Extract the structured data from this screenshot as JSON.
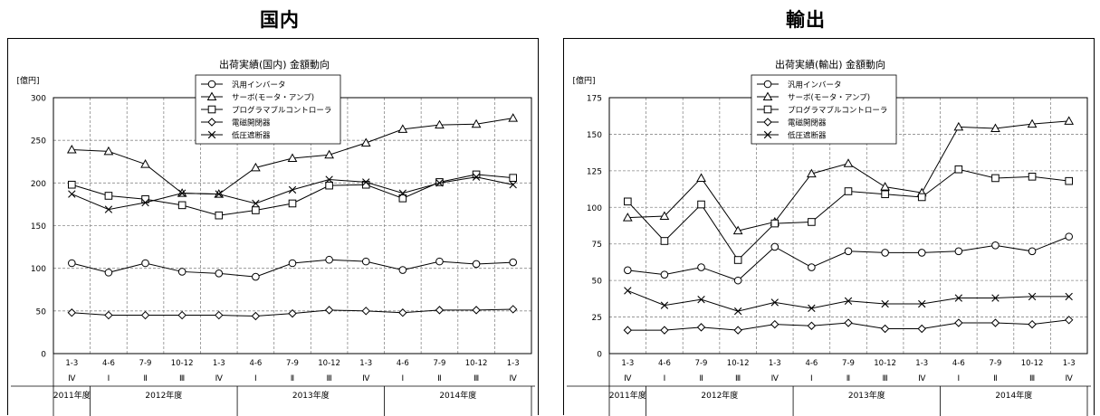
{
  "panels": {
    "left": {
      "heading": "国内"
    },
    "right": {
      "heading": "輸出"
    }
  },
  "chart_data": [
    {
      "type": "line",
      "title": "出荷実績(国内) 金額動向",
      "ylabel": "[億円]",
      "ylim": [
        0,
        300
      ],
      "yticks": [
        0,
        50,
        100,
        150,
        200,
        250,
        300
      ],
      "grid": true,
      "legend_position": "top-center",
      "categories": [
        "1-3",
        "4-6",
        "7-9",
        "10-12",
        "1-3",
        "4-6",
        "7-9",
        "10-12",
        "1-3",
        "4-6",
        "7-9",
        "10-12",
        "1-3"
      ],
      "quarters": [
        "Ⅳ",
        "Ⅰ",
        "Ⅱ",
        "Ⅲ",
        "Ⅳ",
        "Ⅰ",
        "Ⅱ",
        "Ⅲ",
        "Ⅳ",
        "Ⅰ",
        "Ⅱ",
        "Ⅲ",
        "Ⅳ"
      ],
      "fiscal_years": [
        {
          "label": "2011年度",
          "span": 1
        },
        {
          "label": "2012年度",
          "span": 4
        },
        {
          "label": "2013年度",
          "span": 4
        },
        {
          "label": "2014年度",
          "span": 4
        }
      ],
      "series": [
        {
          "name": "汎用インバータ",
          "marker": "circle",
          "values": [
            106,
            95,
            106,
            96,
            94,
            90,
            106,
            110,
            108,
            98,
            108,
            105,
            107
          ]
        },
        {
          "name": "サーボ(モータ・アンプ)",
          "marker": "triangle",
          "values": [
            239,
            237,
            222,
            188,
            187,
            218,
            229,
            233,
            247,
            263,
            268,
            269,
            276
          ]
        },
        {
          "name": "プログラマブルコントローラ",
          "marker": "square",
          "values": [
            198,
            185,
            181,
            174,
            162,
            168,
            176,
            197,
            198,
            182,
            201,
            210,
            206
          ]
        },
        {
          "name": "電磁開閉器",
          "marker": "diamond",
          "values": [
            48,
            45,
            45,
            45,
            45,
            44,
            47,
            51,
            50,
            48,
            51,
            51,
            52
          ]
        },
        {
          "name": "低圧遮断器",
          "marker": "x",
          "values": [
            187,
            169,
            177,
            188,
            187,
            176,
            192,
            204,
            201,
            188,
            200,
            207,
            198
          ]
        }
      ]
    },
    {
      "type": "line",
      "title": "出荷実績(輸出) 金額動向",
      "ylabel": "[億円]",
      "ylim": [
        0,
        175
      ],
      "yticks": [
        0,
        25,
        50,
        75,
        100,
        125,
        150,
        175
      ],
      "grid": true,
      "legend_position": "top-center",
      "categories": [
        "1-3",
        "4-6",
        "7-9",
        "10-12",
        "1-3",
        "4-6",
        "7-9",
        "10-12",
        "1-3",
        "4-6",
        "7-9",
        "10-12",
        "1-3"
      ],
      "quarters": [
        "Ⅳ",
        "Ⅰ",
        "Ⅱ",
        "Ⅲ",
        "Ⅳ",
        "Ⅰ",
        "Ⅱ",
        "Ⅲ",
        "Ⅳ",
        "Ⅰ",
        "Ⅱ",
        "Ⅲ",
        "Ⅳ"
      ],
      "fiscal_years": [
        {
          "label": "2011年度",
          "span": 1
        },
        {
          "label": "2012年度",
          "span": 4
        },
        {
          "label": "2013年度",
          "span": 4
        },
        {
          "label": "2014年度",
          "span": 4
        }
      ],
      "series": [
        {
          "name": "汎用インバータ",
          "marker": "circle",
          "values": [
            57,
            54,
            59,
            50,
            73,
            59,
            70,
            69,
            69,
            70,
            74,
            70,
            80
          ]
        },
        {
          "name": "サーボ(モータ・アンプ)",
          "marker": "triangle",
          "values": [
            93,
            94,
            120,
            84,
            90,
            123,
            130,
            114,
            110,
            155,
            154,
            157,
            159
          ]
        },
        {
          "name": "プログラマブルコントローラ",
          "marker": "square",
          "values": [
            104,
            77,
            102,
            64,
            89,
            90,
            111,
            109,
            107,
            126,
            120,
            121,
            118
          ]
        },
        {
          "name": "電磁開閉器",
          "marker": "diamond",
          "values": [
            16,
            16,
            18,
            16,
            20,
            19,
            21,
            17,
            17,
            21,
            21,
            20,
            23
          ]
        },
        {
          "name": "低圧遮断器",
          "marker": "x",
          "values": [
            43,
            33,
            37,
            29,
            35,
            31,
            36,
            34,
            34,
            38,
            38,
            39,
            39
          ]
        }
      ]
    }
  ]
}
